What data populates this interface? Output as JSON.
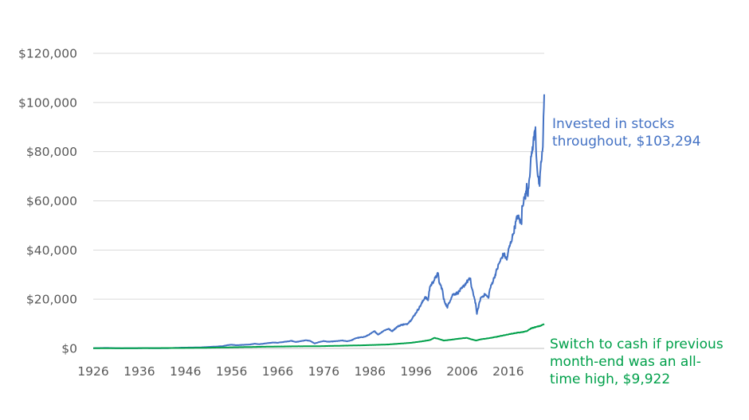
{
  "chart_data": {
    "type": "line",
    "title": "",
    "xlabel": "",
    "ylabel": "",
    "xlim": [
      1926,
      2023.8
    ],
    "ylim": [
      0,
      120000
    ],
    "grid": true,
    "y_ticks": [
      "$0",
      "$20,000",
      "$40,000",
      "$60,000",
      "$80,000",
      "$100,000",
      "$120,000"
    ],
    "x_ticks": [
      "1926",
      "1936",
      "1946",
      "1956",
      "1966",
      "1976",
      "1986",
      "1996",
      "2006",
      "2016"
    ],
    "series": [
      {
        "name": "Invested in stocks throughout, $103,294",
        "label_lines": [
          "Invested in stocks",
          "throughout, $103,294"
        ],
        "color": "#4472c4",
        "x": [
          1926,
          1929,
          1932,
          1937,
          1942,
          1945,
          1949,
          1950,
          1952,
          1954,
          1955,
          1956,
          1957,
          1960,
          1961,
          1962,
          1965,
          1966,
          1968,
          1969,
          1970,
          1972,
          1973,
          1974,
          1975,
          1976,
          1977,
          1979,
          1980,
          1981,
          1982,
          1983,
          1985,
          1986,
          1987,
          1987.8,
          1989,
          1990,
          1990.8,
          1992,
          1993,
          1994,
          1995,
          1996,
          1997,
          1998,
          1998.6,
          1999,
          2000,
          2000.8,
          2001,
          2001.7,
          2002,
          2002.8,
          2003,
          2004,
          2005,
          2006,
          2007,
          2007.8,
          2008,
          2008.6,
          2009,
          2009.2,
          2009.8,
          2010,
          2011,
          2011.7,
          2012,
          2013,
          2014,
          2015,
          2015.7,
          2016,
          2017,
          2018,
          2018.9,
          2019,
          2019.5,
          2019.9,
          2020,
          2020.2,
          2020.5,
          2021,
          2021.9,
          2022,
          2022.4,
          2022.8,
          2023,
          2023.5,
          2023.8
        ],
        "values": [
          100,
          200,
          40,
          120,
          90,
          300,
          400,
          500,
          700,
          900,
          1300,
          1500,
          1300,
          1600,
          1900,
          1700,
          2400,
          2300,
          2800,
          3100,
          2600,
          3300,
          3100,
          2000,
          2600,
          3000,
          2700,
          3000,
          3200,
          2900,
          3300,
          4200,
          4800,
          5800,
          7000,
          5600,
          7200,
          8000,
          7000,
          8900,
          9700,
          9800,
          11700,
          14500,
          17500,
          21000,
          19500,
          25000,
          28000,
          30500,
          27000,
          24000,
          20000,
          16500,
          18000,
          22000,
          22500,
          24500,
          27000,
          28500,
          25000,
          21000,
          17500,
          14000,
          19000,
          20500,
          22000,
          20500,
          24000,
          29000,
          34500,
          38500,
          36000,
          39500,
          46000,
          54000,
          50500,
          58000,
          61000,
          63000,
          67000,
          62000,
          68000,
          78000,
          90000,
          82000,
          70000,
          66000,
          73000,
          82000,
          103294
        ]
      },
      {
        "name": "Switch to cash if previous month-end was an all-time high, $9,922",
        "label_lines": [
          "Switch to cash if previous",
          "month-end was an all-",
          "time high, $9,922"
        ],
        "color": "#00a04a",
        "x": [
          1926,
          1946,
          1950,
          1955,
          1960,
          1965,
          1970,
          1975,
          1980,
          1985,
          1990,
          1995,
          1997,
          1999,
          2000,
          2001,
          2002,
          2003,
          2005,
          2007,
          2008,
          2009,
          2010,
          2012,
          2014,
          2016,
          2018,
          2019,
          2020,
          2021,
          2022,
          2023,
          2023.8
        ],
        "values": [
          50,
          180,
          250,
          420,
          580,
          750,
          850,
          900,
          1100,
          1300,
          1600,
          2300,
          2800,
          3400,
          4300,
          3800,
          3200,
          3400,
          3900,
          4300,
          3700,
          3200,
          3700,
          4200,
          4900,
          5700,
          6400,
          6600,
          7000,
          8200,
          8700,
          9200,
          9922
        ]
      }
    ]
  }
}
